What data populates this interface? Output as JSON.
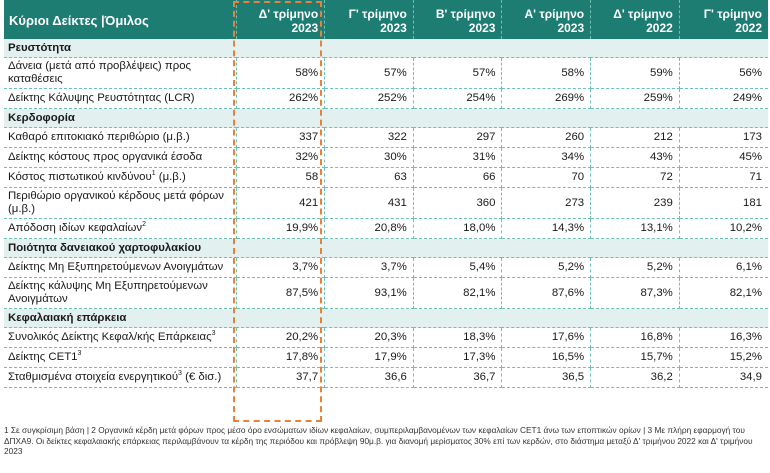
{
  "table": {
    "header": [
      "Κύριοι Δείκτες |Όμιλος",
      "Δ' τρίμηνο 2023",
      "Γ' τρίμηνο 2023",
      "Β' τρίμηνο 2023",
      "Α' τρίμηνο 2023",
      "Δ' τρίμηνο 2022",
      "Γ' τρίμηνο 2022"
    ],
    "header_lines": [
      [
        "Κύριοι Δείκτες |Όμιλος",
        ""
      ],
      [
        "Δ' τρίμηνο",
        "2023"
      ],
      [
        "Γ' τρίμηνο",
        "2023"
      ],
      [
        "Β' τρίμηνο",
        "2023"
      ],
      [
        "Α' τρίμηνο",
        "2023"
      ],
      [
        "Δ' τρίμηνο",
        "2022"
      ],
      [
        "Γ' τρίμηνο",
        "2022"
      ]
    ],
    "sections": [
      {
        "title": "Ρευστότητα",
        "rows": [
          {
            "label": "Δάνεια (μετά από προβλέψεις) προς καταθέσεις",
            "sup": "",
            "suffix": "",
            "values": [
              "58%",
              "57%",
              "57%",
              "58%",
              "59%",
              "56%"
            ]
          },
          {
            "label": "Δείκτης Κάλυψης Ρευστότητας (LCR)",
            "sup": "",
            "suffix": "",
            "values": [
              "262%",
              "252%",
              "254%",
              "269%",
              "259%",
              "249%"
            ]
          }
        ]
      },
      {
        "title": "Κερδοφορία",
        "rows": [
          {
            "label": "Καθαρό επιτοκιακό περιθώριο (μ.β.)",
            "sup": "",
            "suffix": "",
            "values": [
              "337",
              "322",
              "297",
              "260",
              "212",
              "173"
            ]
          },
          {
            "label": "Δείκτης κόστους προς οργανικά έσοδα",
            "sup": "",
            "suffix": "",
            "values": [
              "32%",
              "30%",
              "31%",
              "34%",
              "43%",
              "45%"
            ]
          },
          {
            "label": "Κόστος πιστωτικού κινδύνου",
            "sup": "1",
            "suffix": " (μ.β.)",
            "values": [
              "58",
              "63",
              "66",
              "70",
              "72",
              "71"
            ]
          },
          {
            "label": "Περιθώριο οργανικού κέρδους μετά φόρων (μ.β.)",
            "sup": "",
            "suffix": "",
            "values": [
              "421",
              "431",
              "360",
              "273",
              "239",
              "181"
            ]
          },
          {
            "label": "Απόδοση ιδίων κεφαλαίων",
            "sup": "2",
            "suffix": "",
            "values": [
              "19,9%",
              "20,8%",
              "18,0%",
              "14,3%",
              "13,1%",
              "10,2%"
            ]
          }
        ]
      },
      {
        "title": "Ποιότητα δανειακού χαρτοφυλακίου",
        "rows": [
          {
            "label": "Δείκτης Μη Εξυπηρετούμενων Ανοιγμάτων",
            "sup": "",
            "suffix": "",
            "values": [
              "3,7%",
              "3,7%",
              "5,4%",
              "5,2%",
              "5,2%",
              "6,1%"
            ]
          },
          {
            "label": "Δείκτης κάλυψης Μη Εξυπηρετούμενων Ανοιγμάτων",
            "sup": "",
            "suffix": "",
            "values": [
              "87,5%",
              "93,1%",
              "82,1%",
              "87,6%",
              "87,3%",
              "82,1%"
            ]
          }
        ]
      },
      {
        "title": "Κεφαλαιακή επάρκεια",
        "rows": [
          {
            "label": "Συνολικός Δείκτης Κεφαλ/κής Επάρκειας",
            "sup": "3",
            "suffix": "",
            "values": [
              "20,2%",
              "20,3%",
              "18,3%",
              "17,6%",
              "16,8%",
              "16,3%"
            ]
          },
          {
            "label": "Δείκτης CET1",
            "sup": "3",
            "suffix": "",
            "values": [
              "17,8%",
              "17,9%",
              "17,3%",
              "16,5%",
              "15,7%",
              "15,2%"
            ]
          },
          {
            "label": "Σταθμισμένα στοιχεία ενεργητικού",
            "sup": "3",
            "suffix": " (€ δισ.)",
            "values": [
              "37,7",
              "36,6",
              "36,7",
              "36,5",
              "36,2",
              "34,9"
            ]
          }
        ]
      }
    ]
  },
  "footnote": "1 Σε συγκρίσιμη βάση | 2 Οργανικά κέρδη μετά φόρων προς μέσο όρο ενσώματων ιδίων κεφαλαίων, συμπεριλαμβανομένων των κεφαλαίων CET1 άνω των εποπτικών ορίων | 3 Με πλήρη εφαρμογή του ΔΠΧΑ9. Οι δείκτες κεφαλαιακής επάρκειας περιλαμβάνουν τα κέρδη της περιόδου και πρόβλεψη 90μ.β. για διανομή μερίσματος 30% επί των κερδών, στο διάστημα μεταξύ Δ' τριμήνου 2022 και Δ' τριμήνου 2023",
  "colors": {
    "header_bg": "#1e7d73",
    "section_bg": "#e2f1ef",
    "grid": "#6fc0b6",
    "highlight": "#e8823a"
  }
}
